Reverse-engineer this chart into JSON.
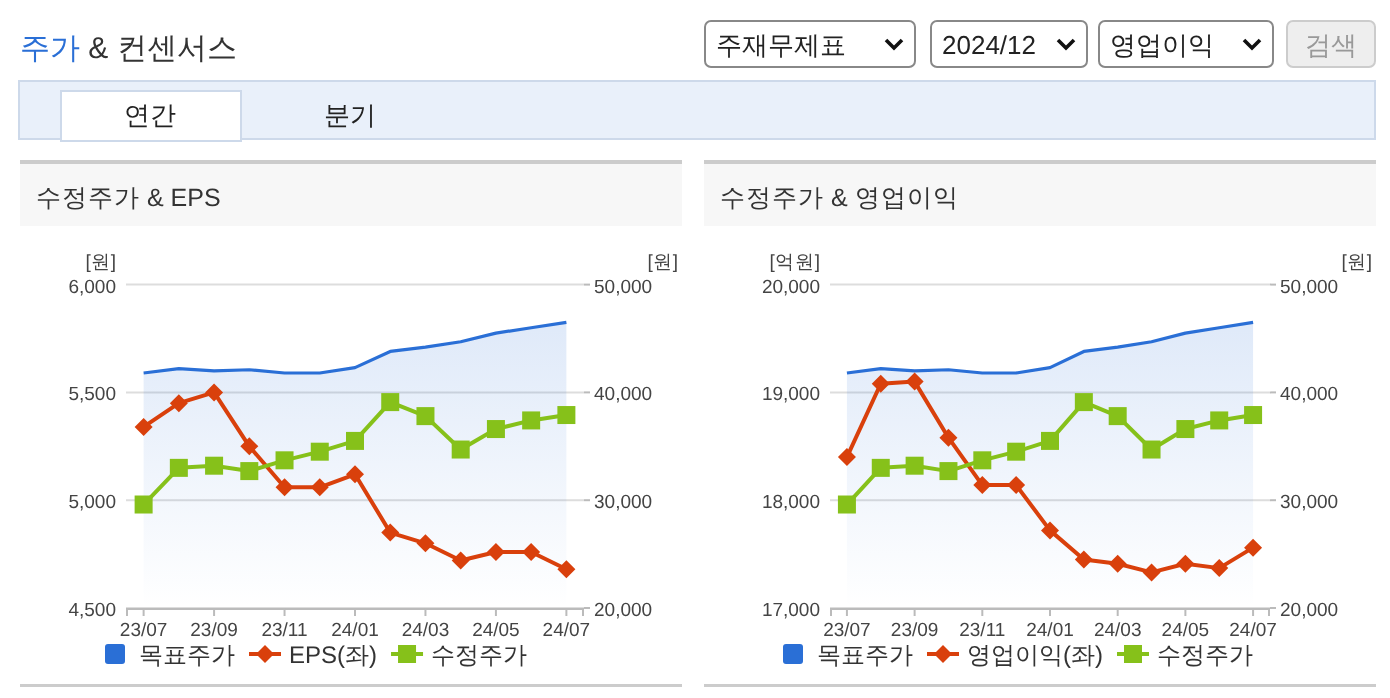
{
  "chart_data": [
    {
      "type": "other",
      "title": "주가 & 컨센서스",
      "annotations": [
        "주재무제표",
        "2024/12",
        "영업이익",
        "검색",
        "연간",
        "분기"
      ]
    },
    {
      "type": "line",
      "title": "수정주가 & EPS",
      "ylabel": "[원]",
      "y2label": "[원]",
      "categories": [
        "23/07",
        null,
        "23/09",
        null,
        "23/11",
        null,
        "24/01",
        null,
        "24/03",
        null,
        "24/05",
        null,
        "24/07"
      ],
      "series": [
        {
          "name": "목표주가",
          "type": "area",
          "axis": "y2",
          "color": "#2a6fd6",
          "marker": "none",
          "values": [
            41800,
            42200,
            42000,
            42100,
            41800,
            41800,
            42300,
            43800,
            44200,
            44700,
            45500,
            46000,
            46500
          ]
        },
        {
          "name": "EPS(좌)",
          "type": "line",
          "color": "#d9400c",
          "marker": "diamond",
          "values": [
            5340,
            5450,
            5500,
            5250,
            5060,
            5060,
            5120,
            4850,
            4800,
            4720,
            4760,
            4760,
            4680
          ]
        },
        {
          "name": "수정주가",
          "type": "line",
          "axis": "y2",
          "color": "#86c11a",
          "marker": "square",
          "values": [
            29600,
            33000,
            33200,
            32700,
            33700,
            34500,
            35500,
            39100,
            37800,
            34700,
            36600,
            37400,
            37900
          ]
        }
      ],
      "ylim": [
        4500,
        6000
      ],
      "yticks": [
        {
          "value": 4500,
          "label": "4,500"
        },
        {
          "value": 5000,
          "label": "5,000"
        },
        {
          "value": 5500,
          "label": "5,500"
        },
        {
          "value": 6000,
          "label": "6,000"
        }
      ],
      "y2lim": [
        20000,
        50000
      ],
      "y2ticks": [
        {
          "value": 20000,
          "label": "20,000"
        },
        {
          "value": 30000,
          "label": "30,000"
        },
        {
          "value": 40000,
          "label": "40,000"
        },
        {
          "value": 50000,
          "label": "50,000"
        }
      ],
      "grid": "y",
      "legend": "bottom"
    },
    {
      "type": "line",
      "title": "수정주가 & 영업이익",
      "ylabel": "[억원]",
      "y2label": "[원]",
      "categories": [
        "23/07",
        null,
        "23/09",
        null,
        "23/11",
        null,
        "24/01",
        null,
        "24/03",
        null,
        "24/05",
        null,
        "24/07"
      ],
      "series": [
        {
          "name": "목표주가",
          "type": "area",
          "axis": "y2",
          "color": "#2a6fd6",
          "marker": "none",
          "values": [
            41800,
            42200,
            42000,
            42100,
            41800,
            41800,
            42300,
            43800,
            44200,
            44700,
            45500,
            46000,
            46500
          ]
        },
        {
          "name": "영업이익(좌)",
          "type": "line",
          "color": "#d9400c",
          "marker": "diamond",
          "values": [
            18400,
            19080,
            19100,
            18580,
            18140,
            18140,
            17720,
            17450,
            17410,
            17330,
            17410,
            17370,
            17560
          ]
        },
        {
          "name": "수정주가",
          "type": "line",
          "axis": "y2",
          "color": "#86c11a",
          "marker": "square",
          "values": [
            29600,
            33000,
            33200,
            32700,
            33700,
            34500,
            35500,
            39100,
            37800,
            34700,
            36600,
            37400,
            37900
          ]
        }
      ],
      "ylim": [
        17000,
        20000
      ],
      "yticks": [
        {
          "value": 17000,
          "label": "17,000"
        },
        {
          "value": 18000,
          "label": "18,000"
        },
        {
          "value": 19000,
          "label": "19,000"
        },
        {
          "value": 20000,
          "label": "20,000"
        }
      ],
      "y2lim": [
        20000,
        50000
      ],
      "y2ticks": [
        {
          "value": 20000,
          "label": "20,000"
        },
        {
          "value": 30000,
          "label": "30,000"
        },
        {
          "value": 40000,
          "label": "40,000"
        },
        {
          "value": 50000,
          "label": "50,000"
        }
      ],
      "grid": "y",
      "legend": "bottom"
    }
  ]
}
